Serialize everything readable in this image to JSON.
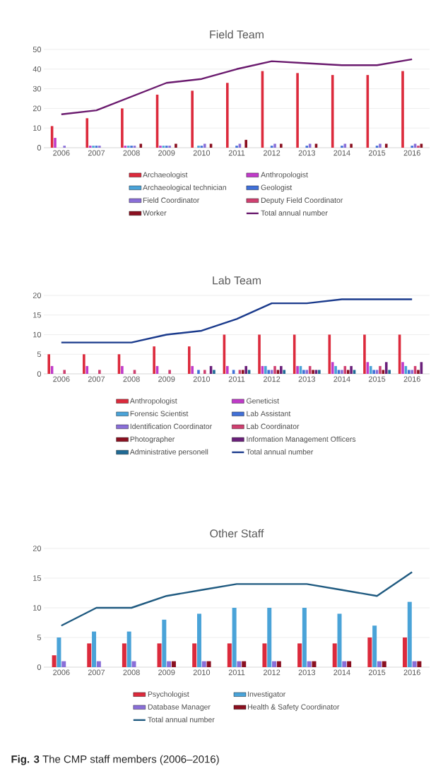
{
  "chart_data": [
    {
      "type": "bar",
      "title": "Field Team",
      "categories": [
        "2006",
        "2007",
        "2008",
        "2009",
        "2010",
        "2011",
        "2012",
        "2013",
        "2014",
        "2015",
        "2016"
      ],
      "ylim": [
        0,
        50
      ],
      "yticks": [
        0,
        10,
        20,
        30,
        40,
        50
      ],
      "grid": "y",
      "legend": "bottom",
      "series": [
        {
          "name": "Archaeologist",
          "color": "#dc2a3c",
          "values": [
            11,
            15,
            20,
            27,
            29,
            33,
            39,
            38,
            37,
            37,
            39
          ]
        },
        {
          "name": "Anthropologist",
          "color": "#c03bc9",
          "values": [
            5,
            1,
            1,
            1,
            0,
            0,
            0,
            0,
            0,
            0,
            0
          ]
        },
        {
          "name": "Archaeological technician",
          "color": "#4aa3d8",
          "values": [
            0,
            1,
            1,
            1,
            1,
            0,
            0,
            0,
            0,
            0,
            0
          ]
        },
        {
          "name": "Geologist",
          "color": "#4170d8",
          "values": [
            0,
            1,
            1,
            1,
            1,
            1,
            1,
            1,
            1,
            1,
            1
          ]
        },
        {
          "name": "Field Coordinator",
          "color": "#8a6fd8",
          "values": [
            1,
            1,
            1,
            1,
            2,
            2,
            2,
            2,
            2,
            2,
            2
          ]
        },
        {
          "name": "Deputy Field Coordinator",
          "color": "#cf4070",
          "values": [
            0,
            0,
            0,
            0,
            0,
            0,
            0,
            0,
            0,
            0,
            1
          ]
        },
        {
          "name": "Worker",
          "color": "#8b1020",
          "values": [
            0,
            0,
            2,
            2,
            2,
            4,
            2,
            2,
            2,
            2,
            2
          ]
        },
        {
          "name": "Total annual number",
          "type": "line",
          "color": "#6a1a6e",
          "values": [
            17,
            19,
            26,
            33,
            35,
            40,
            44,
            43,
            42,
            42,
            45
          ]
        }
      ]
    },
    {
      "type": "bar",
      "title": "Lab Team",
      "categories": [
        "2006",
        "2007",
        "2008",
        "2009",
        "2010",
        "2011",
        "2012",
        "2013",
        "2014",
        "2015",
        "2016"
      ],
      "ylim": [
        0,
        20
      ],
      "yticks": [
        0,
        5,
        10,
        15,
        20
      ],
      "grid": "y",
      "legend": "bottom",
      "series": [
        {
          "name": "Anthropologist",
          "color": "#dc2a3c",
          "values": [
            5,
            5,
            5,
            7,
            7,
            10,
            10,
            10,
            10,
            10,
            10
          ]
        },
        {
          "name": "Geneticist",
          "color": "#c03bc9",
          "values": [
            2,
            2,
            2,
            2,
            2,
            2,
            2,
            2,
            3,
            3,
            3
          ]
        },
        {
          "name": "Forensic Scientist",
          "color": "#4aa3d8",
          "values": [
            0,
            0,
            0,
            0,
            0,
            0,
            2,
            2,
            2,
            2,
            2
          ]
        },
        {
          "name": "Lab Assistant",
          "color": "#4170d8",
          "values": [
            0,
            0,
            0,
            0,
            1,
            1,
            1,
            1,
            1,
            1,
            1
          ]
        },
        {
          "name": "Identification Coordinator",
          "color": "#8a6fd8",
          "values": [
            0,
            0,
            0,
            0,
            0,
            0,
            1,
            1,
            1,
            1,
            1
          ]
        },
        {
          "name": "Lab Coordinator",
          "color": "#cf4070",
          "values": [
            1,
            1,
            1,
            1,
            1,
            1,
            2,
            2,
            2,
            2,
            2
          ]
        },
        {
          "name": "Photographer",
          "color": "#8b1020",
          "values": [
            0,
            0,
            0,
            0,
            0,
            1,
            1,
            1,
            1,
            1,
            1
          ]
        },
        {
          "name": "Information Management Officers",
          "color": "#6a1f7a",
          "values": [
            0,
            0,
            0,
            0,
            2,
            2,
            2,
            1,
            2,
            3,
            3
          ]
        },
        {
          "name": "Administrative personell",
          "color": "#1f6a95",
          "values": [
            0,
            0,
            0,
            0,
            1,
            1,
            1,
            1,
            1,
            1,
            0
          ]
        },
        {
          "name": "Total annual number",
          "type": "line",
          "color": "#1a3a8c",
          "values": [
            8,
            8,
            8,
            10,
            11,
            14,
            18,
            18,
            19,
            19,
            19
          ]
        }
      ]
    },
    {
      "type": "bar",
      "title": "Other Staff",
      "categories": [
        "2006",
        "2007",
        "2008",
        "2009",
        "2010",
        "2011",
        "2012",
        "2013",
        "2014",
        "2015",
        "2016"
      ],
      "ylim": [
        0,
        20
      ],
      "yticks": [
        0,
        5,
        10,
        15,
        20
      ],
      "grid": "y",
      "legend": "bottom",
      "annotations": [
        "**Fig. 3** The CMP staff members (2006–2016)"
      ],
      "series": [
        {
          "name": "Psychologist",
          "color": "#dc2a3c",
          "values": [
            2,
            4,
            4,
            4,
            4,
            4,
            4,
            4,
            4,
            5,
            5
          ]
        },
        {
          "name": "Investigator",
          "color": "#4aa3d8",
          "values": [
            5,
            6,
            6,
            8,
            9,
            10,
            10,
            10,
            9,
            7,
            11
          ]
        },
        {
          "name": "Database Manager",
          "color": "#8a6fd8",
          "values": [
            1,
            1,
            1,
            1,
            1,
            1,
            1,
            1,
            1,
            1,
            1
          ]
        },
        {
          "name": "Health & Safety Coordinator",
          "color": "#8b1020",
          "values": [
            0,
            0,
            0,
            1,
            1,
            1,
            1,
            1,
            1,
            1,
            1
          ]
        },
        {
          "name": "Total annual number",
          "type": "line",
          "color": "#1f5a80",
          "values": [
            7,
            10,
            10,
            12,
            13,
            14,
            14,
            14,
            13,
            12,
            16
          ]
        }
      ]
    }
  ]
}
